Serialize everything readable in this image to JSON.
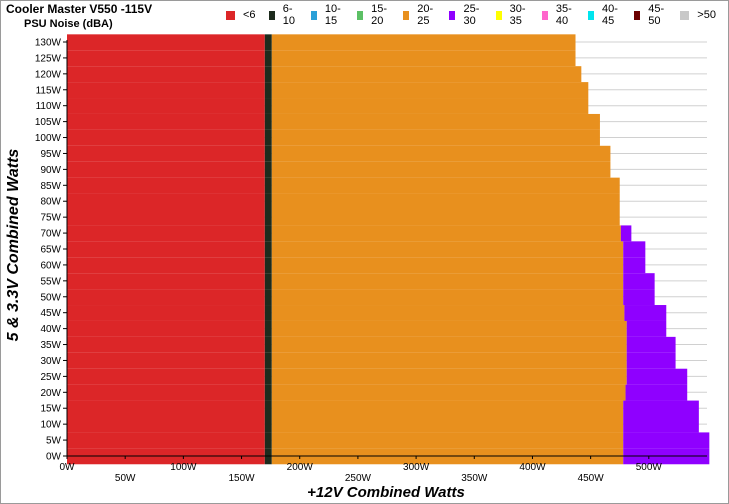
{
  "chart_data": {
    "type": "heatmap",
    "title": "Cooler Master V550 -115V",
    "subtitle": "PSU Noise (dBA)",
    "xlabel": "+12V Combined Watts",
    "ylabel": "5 & 3.3V Combined Watts",
    "xlim": [
      0,
      550
    ],
    "ylim": [
      0,
      130
    ],
    "x_ticks": [
      "0W",
      "50W",
      "100W",
      "150W",
      "200W",
      "250W",
      "300W",
      "350W",
      "400W",
      "450W",
      "500W"
    ],
    "y_ticks": [
      "0W",
      "5W",
      "10W",
      "15W",
      "20W",
      "25W",
      "30W",
      "35W",
      "40W",
      "45W",
      "50W",
      "55W",
      "60W",
      "65W",
      "70W",
      "75W",
      "80W",
      "85W",
      "90W",
      "95W",
      "100W",
      "105W",
      "110W",
      "115W",
      "120W",
      "125W",
      "130W"
    ],
    "grid": true,
    "legend_position": "top",
    "legend": [
      {
        "label": "<6",
        "color": "#dc2628"
      },
      {
        "label": "6-10",
        "color": "#1d2b1d"
      },
      {
        "label": "10-15",
        "color": "#2aa0d8"
      },
      {
        "label": "15-20",
        "color": "#5cc065"
      },
      {
        "label": "20-25",
        "color": "#e8901e"
      },
      {
        "label": "25-30",
        "color": "#8f00ff"
      },
      {
        "label": "30-35",
        "color": "#ffff00"
      },
      {
        "label": "35-40",
        "color": "#ff66cc"
      },
      {
        "label": "40-45",
        "color": "#00e5ee"
      },
      {
        "label": "45-50",
        "color": "#6b0000"
      },
      {
        "label": ">50",
        "color": "#c8c8c8"
      }
    ],
    "band_boundaries": {
      "y": [
        0,
        5,
        10,
        15,
        20,
        25,
        30,
        35,
        40,
        45,
        50,
        55,
        60,
        65,
        70,
        75,
        80,
        85,
        90,
        95,
        100,
        105,
        110,
        115,
        120,
        125,
        130
      ],
      "lt6_to_6_10_x": 170,
      "6_10_to_20_25_x": 176,
      "20_25_end_x": [
        478,
        478,
        478,
        478,
        480,
        481,
        481,
        481,
        481,
        479,
        478,
        478,
        478,
        478,
        476,
        475,
        475,
        475,
        467,
        467,
        458,
        458,
        448,
        448,
        442,
        437,
        437
      ],
      "25_30_end_x": [
        552,
        552,
        543,
        543,
        533,
        533,
        523,
        523,
        515,
        515,
        505,
        505,
        497,
        497,
        485,
        475,
        475,
        475,
        467,
        467,
        458,
        458,
        448,
        448,
        442,
        437,
        437
      ]
    }
  }
}
